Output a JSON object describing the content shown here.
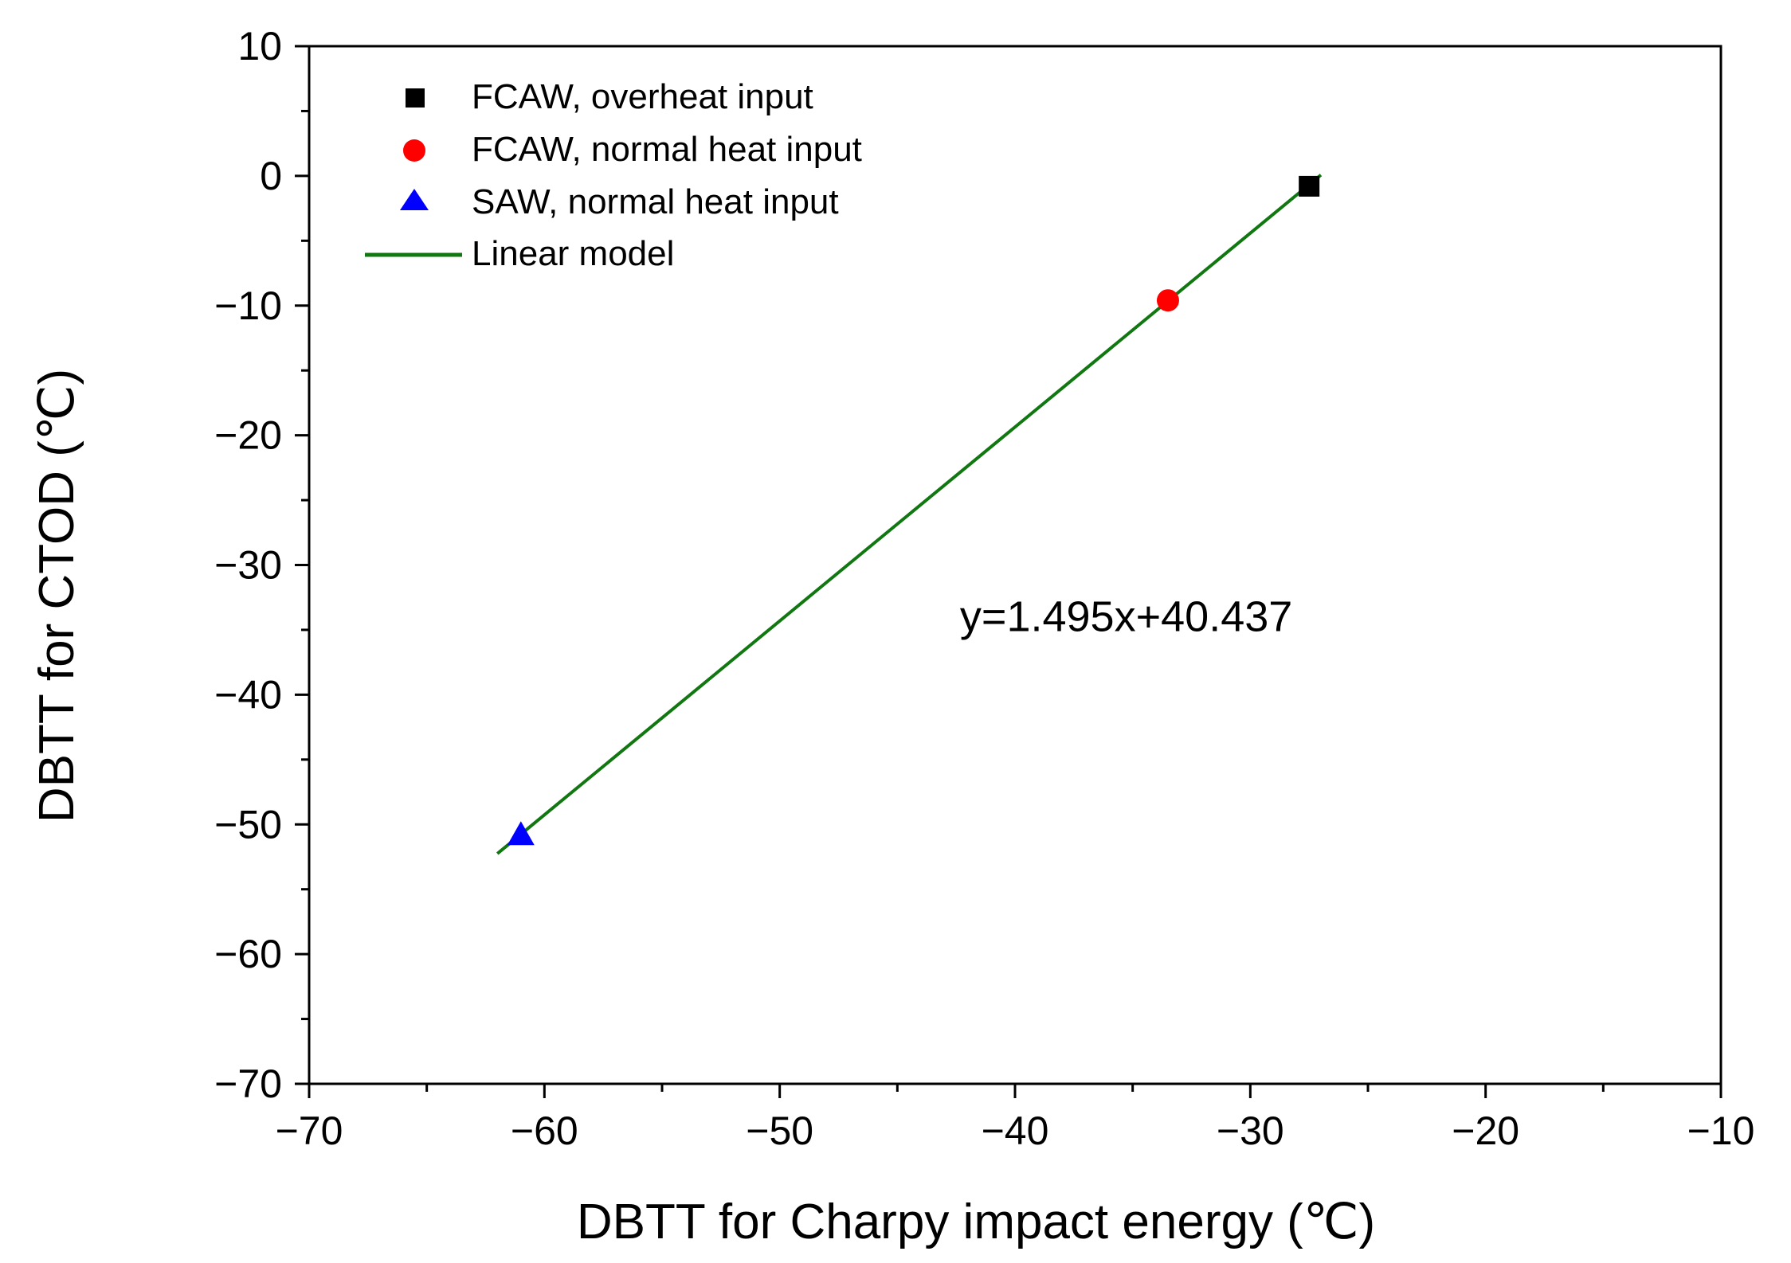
{
  "chart_data": {
    "type": "scatter",
    "xlabel": "DBTT for Charpy impact energy (℃)",
    "ylabel": "DBTT for CTOD (℃)",
    "xlim": [
      -70,
      -10
    ],
    "ylim": [
      -70,
      10
    ],
    "x_major_ticks": [
      -70,
      -60,
      -50,
      -40,
      -30,
      -20,
      -10
    ],
    "x_tick_labels": [
      "−70",
      "−60",
      "−50",
      "−40",
      "−30",
      "−20",
      "−10"
    ],
    "x_minor_step": 5,
    "y_major_ticks": [
      10,
      0,
      -10,
      -20,
      -30,
      -40,
      -50,
      -60,
      -70
    ],
    "y_tick_labels": [
      "10",
      "0",
      "−10",
      "−20",
      "−30",
      "−40",
      "−50",
      "−60",
      "−70"
    ],
    "y_minor_step": 5,
    "grid": false,
    "legend_position": "top-left",
    "series": [
      {
        "name": "FCAW, overheat input",
        "marker": "square",
        "color": "#000000",
        "points": [
          {
            "x": -27.5,
            "y": -0.8
          }
        ]
      },
      {
        "name": "FCAW, normal heat input",
        "marker": "circle",
        "color": "#ff0000",
        "points": [
          {
            "x": -33.5,
            "y": -9.6
          }
        ]
      },
      {
        "name": "SAW, normal heat input",
        "marker": "triangle",
        "color": "#0000ff",
        "points": [
          {
            "x": -61.0,
            "y": -50.8
          }
        ]
      }
    ],
    "fit": {
      "name": "Linear model",
      "color": "#117711",
      "slope": 1.495,
      "intercept": 40.437,
      "x_range": [
        -62.0,
        -27.0
      ]
    },
    "annotation": {
      "text": "y=1.495x+40.437",
      "x": -42,
      "y": -34
    }
  }
}
